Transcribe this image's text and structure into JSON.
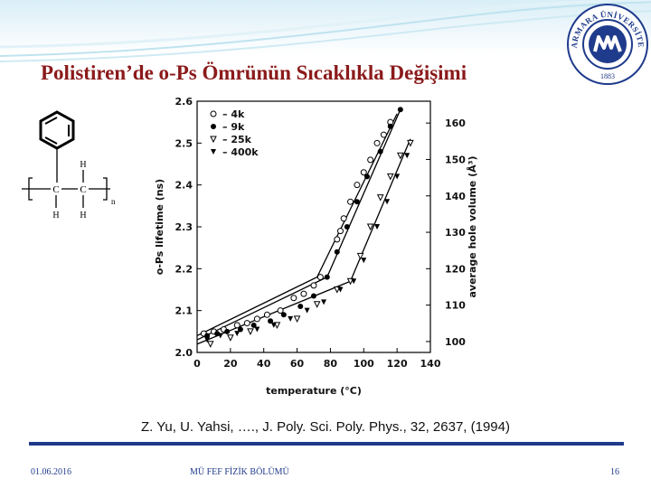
{
  "slide": {
    "title": "Polistiren’de o-Ps Ömrünün Sıcaklıkla Değişimi",
    "citation": "Z. Yu, U. Yahsi, …., J. Poly. Sci. Poly. Phys., 32, 2637, (1994)",
    "footer_date": "01.06.2016",
    "footer_department": "MÜ FEF FİZİK BÖLÜMÜ",
    "page_number": "16",
    "accent_color": "#8b1a1a",
    "rule_color": "#1f3b8c"
  },
  "logo": {
    "text_top": "MARMARA ÜNİVERSİTESİ",
    "year": "1883",
    "icon": "marmara-university-seal"
  },
  "structure": {
    "atom_h": "H",
    "atom_c": "C",
    "subscript": "n"
  },
  "chart_data": {
    "type": "scatter",
    "xlabel": "temperature (°C)",
    "ylabel": "o-Ps lifetime (ns)",
    "y2label": "average hole volume (Å³)",
    "xlim": [
      0,
      140
    ],
    "ylim": [
      2.0,
      2.6
    ],
    "y2lim": [
      97,
      166
    ],
    "x_ticks": [
      "0",
      "20",
      "40",
      "60",
      "80",
      "100",
      "120",
      "140"
    ],
    "y_ticks": [
      "2.0",
      "2.1",
      "2.2",
      "2.3",
      "2.4",
      "2.5",
      "2.6"
    ],
    "y2_ticks": [
      "100",
      "110",
      "120",
      "130",
      "140",
      "150",
      "160"
    ],
    "legend_position": "top-left",
    "series": [
      {
        "name": "4k",
        "marker": "circle-open",
        "x": [
          4,
          10,
          16,
          24,
          30,
          36,
          42,
          50,
          58,
          64,
          70,
          74,
          84,
          86,
          88,
          92,
          96,
          100,
          104,
          108,
          112,
          116
        ],
        "y": [
          2.045,
          2.05,
          2.055,
          2.065,
          2.07,
          2.08,
          2.09,
          2.1,
          2.13,
          2.14,
          2.16,
          2.18,
          2.27,
          2.29,
          2.32,
          2.36,
          2.4,
          2.43,
          2.46,
          2.5,
          2.52,
          2.55
        ]
      },
      {
        "name": "9k",
        "marker": "circle-filled",
        "x": [
          6,
          12,
          18,
          26,
          34,
          44,
          52,
          62,
          70,
          78,
          84,
          90,
          96,
          102,
          110,
          116,
          122
        ],
        "y": [
          2.04,
          2.045,
          2.05,
          2.055,
          2.065,
          2.075,
          2.09,
          2.11,
          2.135,
          2.18,
          2.24,
          2.3,
          2.36,
          2.42,
          2.48,
          2.54,
          2.58
        ]
      },
      {
        "name": "25k",
        "marker": "triangle-down-open",
        "x": [
          8,
          20,
          32,
          48,
          60,
          72,
          84,
          92,
          98,
          104,
          110,
          116,
          122,
          128
        ],
        "y": [
          2.02,
          2.035,
          2.05,
          2.065,
          2.08,
          2.115,
          2.15,
          2.17,
          2.23,
          2.3,
          2.37,
          2.42,
          2.47,
          2.5
        ]
      },
      {
        "name": "400k",
        "marker": "triangle-down-filled",
        "x": [
          6,
          14,
          24,
          36,
          46,
          56,
          66,
          76,
          86,
          94,
          100,
          108,
          114,
          120,
          126
        ],
        "y": [
          2.03,
          2.04,
          2.045,
          2.055,
          2.065,
          2.08,
          2.1,
          2.12,
          2.15,
          2.17,
          2.22,
          2.3,
          2.36,
          2.42,
          2.47
        ]
      }
    ],
    "fit_lines": [
      {
        "points": [
          [
            0,
            2.04
          ],
          [
            72,
            2.18
          ],
          [
            120,
            2.57
          ]
        ]
      },
      {
        "points": [
          [
            0,
            2.03
          ],
          [
            78,
            2.18
          ],
          [
            122,
            2.58
          ]
        ]
      },
      {
        "points": [
          [
            0,
            2.02
          ],
          [
            92,
            2.17
          ],
          [
            128,
            2.51
          ]
        ]
      }
    ]
  }
}
